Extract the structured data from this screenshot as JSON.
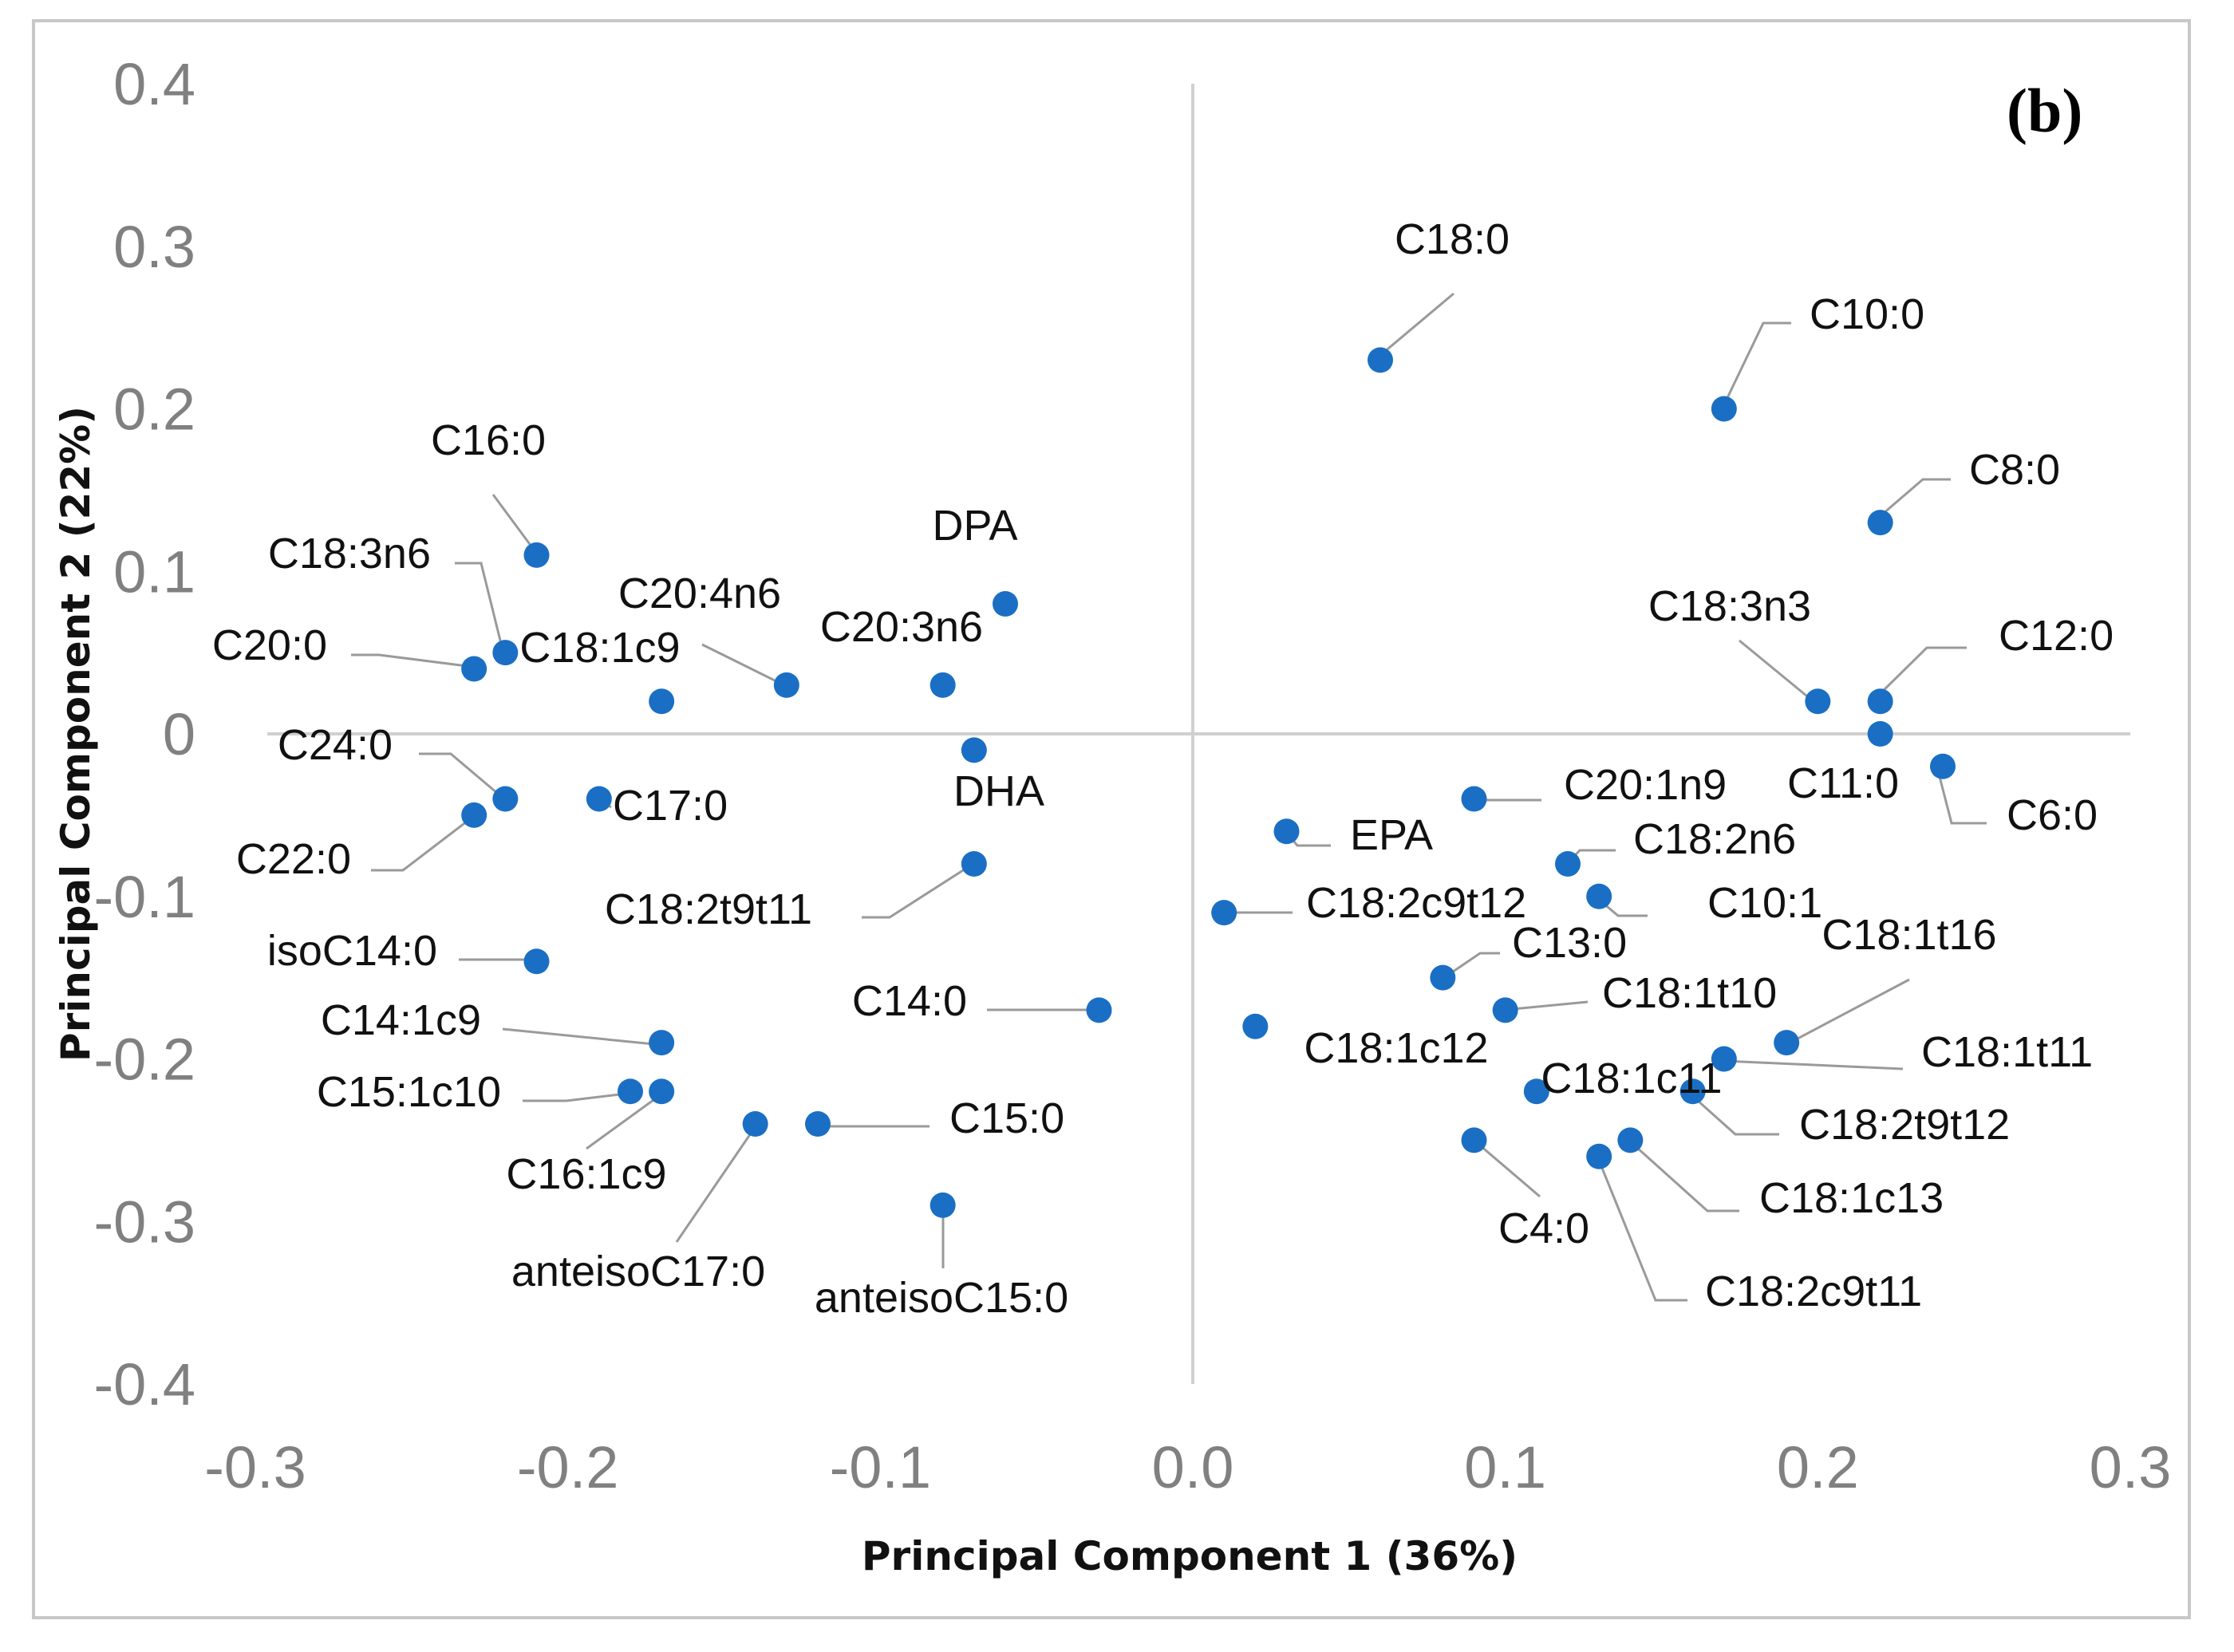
{
  "chart_data": {
    "type": "scatter",
    "panel_label": "(b)",
    "xlabel": "Principal Component 1 (36%)",
    "ylabel": "Principal Component 2 (22%)",
    "xlim": [
      -0.3,
      0.3
    ],
    "ylim": [
      -0.4,
      0.4
    ],
    "x_ticks": [
      -0.3,
      -0.2,
      -0.1,
      0.0,
      0.1,
      0.2,
      0.3
    ],
    "x_tick_labels": [
      "-0.3",
      "-0.2",
      "-0.1",
      "0.0",
      "0.1",
      "0.2",
      "0.3"
    ],
    "y_ticks": [
      0.4,
      0.3,
      0.2,
      0.1,
      0,
      -0.1,
      -0.2,
      -0.3,
      -0.4
    ],
    "y_tick_labels": [
      "0.4",
      "0.3",
      "0.2",
      "0.1",
      "0",
      "-0.1",
      "-0.2",
      "-0.3",
      "-0.4"
    ],
    "marker_color": "#1a6fc4",
    "leader_color": "#9a9a9a",
    "points": [
      {
        "label": "C18:0",
        "x": 0.06,
        "y": 0.23
      },
      {
        "label": "C10:0",
        "x": 0.17,
        "y": 0.2
      },
      {
        "label": "C8:0",
        "x": 0.22,
        "y": 0.13
      },
      {
        "label": "C18:3n3",
        "x": 0.2,
        "y": 0.02
      },
      {
        "label": "C12:0",
        "x": 0.22,
        "y": 0.02
      },
      {
        "label": "C11:0",
        "x": 0.22,
        "y": 0.0
      },
      {
        "label": "C6:0",
        "x": 0.24,
        "y": -0.02
      },
      {
        "label": "C16:0",
        "x": -0.21,
        "y": 0.11
      },
      {
        "label": "C18:3n6",
        "x": -0.22,
        "y": 0.05
      },
      {
        "label": "C20:0",
        "x": -0.23,
        "y": 0.04
      },
      {
        "label": "C18:1c9",
        "x": -0.17,
        "y": 0.02
      },
      {
        "label": "C20:4n6",
        "x": -0.13,
        "y": 0.03
      },
      {
        "label": "C20:3n6",
        "x": -0.08,
        "y": 0.03
      },
      {
        "label": "DPA",
        "x": -0.06,
        "y": 0.08
      },
      {
        "label": "DHA",
        "x": -0.07,
        "y": -0.01
      },
      {
        "label": "C24:0",
        "x": -0.22,
        "y": -0.04
      },
      {
        "label": "C17:0",
        "x": -0.19,
        "y": -0.04
      },
      {
        "label": "C22:0",
        "x": -0.23,
        "y": -0.05
      },
      {
        "label": "C18:2t9t11",
        "x": -0.07,
        "y": -0.08
      },
      {
        "label": "isoC14:0",
        "x": -0.21,
        "y": -0.14
      },
      {
        "label": "C14:0",
        "x": -0.03,
        "y": -0.17
      },
      {
        "label": "C14:1c9",
        "x": -0.17,
        "y": -0.19
      },
      {
        "label": "C15:1c10",
        "x": -0.18,
        "y": -0.22
      },
      {
        "label": "C16:1c9",
        "x": -0.17,
        "y": -0.22
      },
      {
        "label": "C15:0",
        "x": -0.12,
        "y": -0.24
      },
      {
        "label": "anteisoC17:0",
        "x": -0.14,
        "y": -0.24
      },
      {
        "label": "anteisoC15:0",
        "x": -0.08,
        "y": -0.29
      },
      {
        "label": "C20:1n9",
        "x": 0.09,
        "y": -0.04
      },
      {
        "label": "EPA",
        "x": 0.03,
        "y": -0.06
      },
      {
        "label": "C18:2n6",
        "x": 0.12,
        "y": -0.08
      },
      {
        "label": "C10:1",
        "x": 0.13,
        "y": -0.1
      },
      {
        "label": "C18:2c9t12",
        "x": 0.01,
        "y": -0.11
      },
      {
        "label": "C13:0",
        "x": 0.08,
        "y": -0.15
      },
      {
        "label": "C18:1t10",
        "x": 0.1,
        "y": -0.17
      },
      {
        "label": "C18:1c12",
        "x": 0.02,
        "y": -0.18
      },
      {
        "label": "C18:1t16",
        "x": 0.19,
        "y": -0.19
      },
      {
        "label": "C18:1t11",
        "x": 0.17,
        "y": -0.2
      },
      {
        "label": "C18:1c11",
        "x": 0.11,
        "y": -0.22
      },
      {
        "label": "C18:2t9t12",
        "x": 0.16,
        "y": -0.22
      },
      {
        "label": "C4:0",
        "x": 0.09,
        "y": -0.25
      },
      {
        "label": "C18:1c13",
        "x": 0.14,
        "y": -0.25
      },
      {
        "label": "C18:2c9t11",
        "x": 0.13,
        "y": -0.26
      }
    ]
  }
}
